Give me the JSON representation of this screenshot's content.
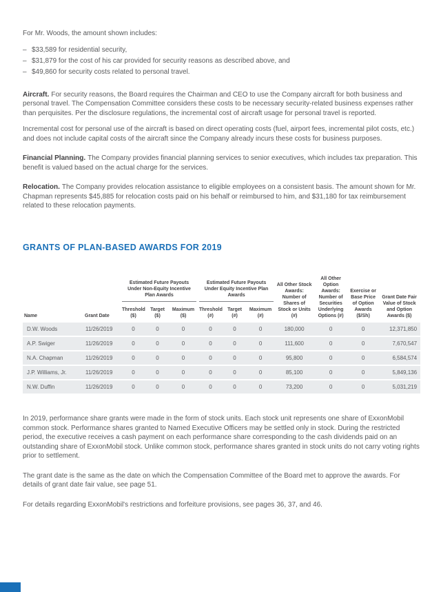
{
  "intro": "For Mr. Woods, the amount shown includes:",
  "bullets": [
    {
      "marker": "–",
      "text": "$33,589 for residential security,"
    },
    {
      "marker": "–",
      "text": "$31,879 for the cost of his car provided for security reasons as described above, and"
    },
    {
      "marker": "–",
      "text": "$49,860 for security costs related to personal travel."
    }
  ],
  "paragraphs": [
    {
      "lead": "Aircraft.",
      "text": "For security reasons, the Board requires the Chairman and CEO to use the Company aircraft for both business and personal travel. The Compensation Committee considers these costs to be necessary security-related business expenses rather than perquisites. Per the disclosure regulations, the incremental cost of aircraft usage for personal travel is reported."
    },
    {
      "lead": "",
      "text": "Incremental cost for personal use of the aircraft is based on direct operating costs (fuel, airport fees, incremental pilot costs, etc.) and does not include capital costs of the aircraft since the Company already incurs these costs for business purposes."
    },
    {
      "lead": "Financial Planning.",
      "text": "The Company provides financial planning services to senior executives, which includes tax preparation. This benefit is valued based on the actual charge for the services."
    },
    {
      "lead": "Relocation.",
      "text": "The Company provides relocation assistance to eligible employees on a consistent basis. The amount shown for Mr. Chapman represents $45,885 for relocation costs paid on his behalf or reimbursed to him, and $31,180 for tax reimbursement related to these relocation payments."
    }
  ],
  "section_title": "GRANTS OF PLAN-BASED AWARDS FOR 2019",
  "table": {
    "col_name": "Name",
    "col_grant_date": "Grant Date",
    "group_non_equity": "Estimated Future Payouts Under Non-Equity Incentive Plan Awards",
    "group_equity": "Estimated Future Payouts Under Equity Incentive Plan Awards",
    "sub_headers": [
      {
        "label": "Threshold",
        "unit": "($)"
      },
      {
        "label": "Target",
        "unit": "($)"
      },
      {
        "label": "Maximum",
        "unit": "($)"
      },
      {
        "label": "Threshold",
        "unit": "(#)"
      },
      {
        "label": "Target",
        "unit": "(#)"
      },
      {
        "label": "Maximum",
        "unit": "(#)"
      }
    ],
    "col_stock_awards": "All Other Stock Awards: Number of Shares of Stock or Units (#)",
    "col_option_awards": "All Other Option Awards: Number of Securities Underlying Options (#)",
    "col_exercise": "Exercise or Base Price of Option Awards ($/Sh)",
    "col_fair_value": "Grant Date Fair Value of Stock and Option Awards ($)",
    "rows": [
      [
        "D.W. Woods",
        "11/26/2019",
        "0",
        "0",
        "0",
        "0",
        "0",
        "0",
        "180,000",
        "0",
        "0",
        "12,371,850"
      ],
      [
        "A.P. Swiger",
        "11/26/2019",
        "0",
        "0",
        "0",
        "0",
        "0",
        "0",
        "111,600",
        "0",
        "0",
        "7,670,547"
      ],
      [
        "N.A. Chapman",
        "11/26/2019",
        "0",
        "0",
        "0",
        "0",
        "0",
        "0",
        "95,800",
        "0",
        "0",
        "6,584,574"
      ],
      [
        "J.P. Williams, Jr.",
        "11/26/2019",
        "0",
        "0",
        "0",
        "0",
        "0",
        "0",
        "85,100",
        "0",
        "0",
        "5,849,136"
      ],
      [
        "N.W. Duffin",
        "11/26/2019",
        "0",
        "0",
        "0",
        "0",
        "0",
        "0",
        "73,200",
        "0",
        "0",
        "5,031,219"
      ]
    ]
  },
  "closing_paragraphs": [
    "In 2019, performance share grants were made in the form of stock units. Each stock unit represents one share of ExxonMobil common stock. Performance shares granted to Named Executive Officers may be settled only in stock. During the restricted period, the executive receives a cash payment on each performance share corresponding to the cash dividends paid on an outstanding share of ExxonMobil stock. Unlike common stock, performance shares granted in stock units do not carry voting rights prior to settlement.",
    "The grant date is the same as the date on which the Compensation Committee of the Board met to approve the awards. For details of grant date fair value, see page 51.",
    "For details regarding ExxonMobil's restrictions and forfeiture provisions, see pages 36, 37, and 46."
  ],
  "colors": {
    "heading_blue": "#1a70b8",
    "body_text": "#58595b",
    "bold_text": "#414042",
    "row_shade": "#e9ebed"
  }
}
